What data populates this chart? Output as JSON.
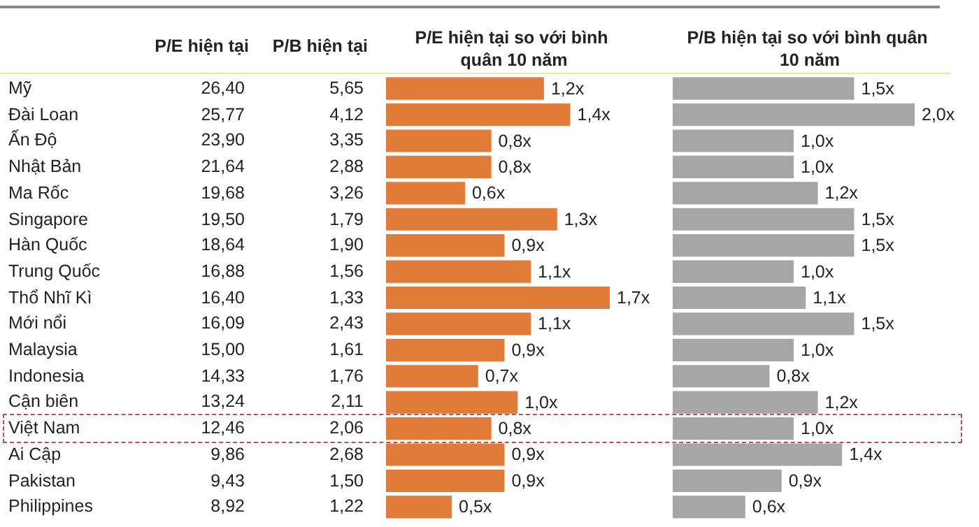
{
  "chart_data": [
    {
      "type": "other",
      "categories": [
        "Mỹ",
        "Đài Loan",
        "Ấn Độ",
        "Nhật Bản",
        "Ma Rốc",
        "Singapore",
        "Hàn Quốc",
        "Trung Quốc",
        "Thổ Nhĩ Kì",
        "Mới nổi",
        "Malaysia",
        "Indonesia",
        "Cận biên",
        "Việt Nam",
        "Ai Cập",
        "Pakistan",
        "Philippines"
      ],
      "series": [
        {
          "name": "P/E hiện tại",
          "values": [
            26.4,
            25.77,
            23.9,
            21.64,
            19.68,
            19.5,
            18.64,
            16.88,
            16.4,
            16.09,
            15.0,
            14.33,
            13.24,
            12.46,
            9.86,
            9.43,
            8.92
          ],
          "value_labels": [
            "26,40",
            "25,77",
            "23,90",
            "21,64",
            "19,68",
            "19,50",
            "18,64",
            "16,88",
            "16,40",
            "16,09",
            "15,00",
            "14,33",
            "13,24",
            "12,46",
            "9,86",
            "9,43",
            "8,92"
          ]
        },
        {
          "name": "P/B hiện tại",
          "values": [
            5.65,
            4.12,
            3.35,
            2.88,
            3.26,
            1.79,
            1.9,
            1.56,
            1.33,
            2.43,
            1.61,
            1.76,
            2.11,
            2.06,
            2.68,
            1.5,
            1.22
          ],
          "value_labels": [
            "5,65",
            "4,12",
            "3,35",
            "2,88",
            "3,26",
            "1,79",
            "1,90",
            "1,56",
            "1,33",
            "2,43",
            "1,61",
            "1,76",
            "2,11",
            "2,06",
            "2,68",
            "1,50",
            "1,22"
          ]
        }
      ]
    },
    {
      "type": "bar",
      "orientation": "horizontal",
      "title": "P/E hiện tại so với bình quân 10 năm",
      "categories": [
        null,
        null,
        null,
        null,
        null,
        null,
        null,
        null,
        null,
        null,
        null,
        null,
        null,
        null,
        null,
        null,
        null
      ],
      "color": "#e07b39",
      "values": [
        1.2,
        1.4,
        0.8,
        0.8,
        0.6,
        1.3,
        0.9,
        1.1,
        1.7,
        1.1,
        0.9,
        0.7,
        1.0,
        0.8,
        0.9,
        0.9,
        0.5
      ],
      "value_labels": [
        "1,2x",
        "1,4x",
        "0,8x",
        "0,8x",
        "0,6x",
        "1,3x",
        "0,9x",
        "1,1x",
        "1,7x",
        "1,1x",
        "0,9x",
        "0,7x",
        "1,0x",
        "0,8x",
        "0,9x",
        "0,9x",
        "0,5x"
      ]
    },
    {
      "type": "bar",
      "orientation": "horizontal",
      "title": "P/B hiện tại so với bình quân 10 năm",
      "categories": [
        null,
        null,
        null,
        null,
        null,
        null,
        null,
        null,
        null,
        null,
        null,
        null,
        null,
        null,
        null,
        null,
        null
      ],
      "color": "#a6a6a6",
      "values": [
        1.5,
        2.0,
        1.0,
        1.0,
        1.2,
        1.5,
        1.5,
        1.0,
        1.1,
        1.5,
        1.0,
        0.8,
        1.2,
        1.0,
        1.4,
        0.9,
        0.6
      ],
      "value_labels": [
        "1,5x",
        "2,0x",
        "1,0x",
        "1,0x",
        "1,2x",
        "1,5x",
        "1,5x",
        "1,0x",
        "1,1x",
        "1,5x",
        "1,0x",
        "0,8x",
        "1,2x",
        "1,0x",
        "1,4x",
        "0,9x",
        "0,6x"
      ]
    }
  ]
}
